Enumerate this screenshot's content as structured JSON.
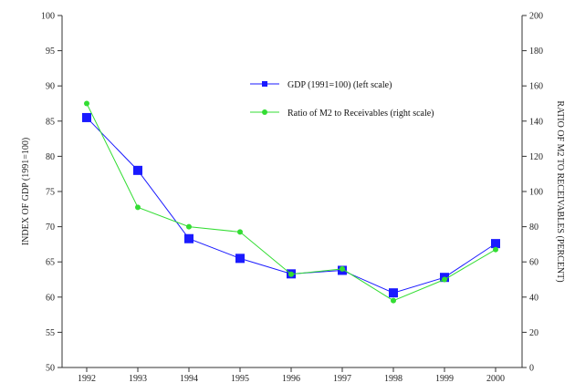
{
  "chart_data": {
    "type": "line",
    "categories": [
      "1992",
      "1993",
      "1994",
      "1995",
      "1996",
      "1997",
      "1998",
      "1999",
      "2000"
    ],
    "left_axis": {
      "label": "INDEX OF GDP (1991=100)",
      "ylim": [
        50,
        100
      ],
      "ticks": [
        "50",
        "55",
        "60",
        "65",
        "70",
        "75",
        "80",
        "85",
        "90",
        "95",
        "100"
      ]
    },
    "right_axis": {
      "label": "RATIO OF M2 TO RECEIVABLES (PERCENT)",
      "ylim": [
        0,
        200
      ],
      "ticks": [
        "0",
        "20",
        "40",
        "60",
        "80",
        "100",
        "120",
        "140",
        "160",
        "180",
        "200"
      ]
    },
    "series": [
      {
        "name": "GDP (1991=100) (left scale)",
        "axis": "left",
        "color": "#1a1aff",
        "marker": "square",
        "values": [
          85.5,
          78.0,
          68.3,
          65.5,
          63.3,
          63.8,
          60.6,
          62.8,
          67.6
        ]
      },
      {
        "name": "Ratio of M2 to Receivables (right scale)",
        "axis": "right",
        "color": "#33dd33",
        "marker": "circle",
        "values": [
          150,
          91,
          80,
          77,
          53,
          56,
          38,
          50,
          67
        ]
      }
    ],
    "legend_position": "top-right",
    "grid": false
  }
}
